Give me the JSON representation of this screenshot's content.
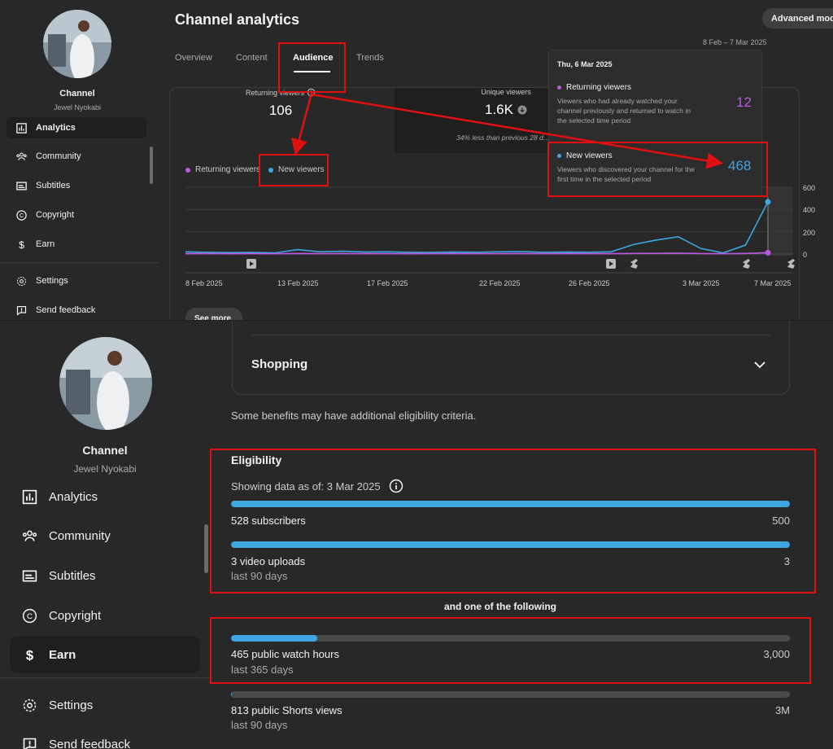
{
  "top": {
    "channel": {
      "name": "Channel",
      "owner": "Jewel Nyokabi"
    },
    "nav": [
      {
        "label": "Analytics",
        "icon": "analytics-icon"
      },
      {
        "label": "Community",
        "icon": "community-icon"
      },
      {
        "label": "Subtitles",
        "icon": "subtitles-icon"
      },
      {
        "label": "Copyright",
        "icon": "copyright-icon"
      },
      {
        "label": "Earn",
        "icon": "dollar-icon"
      },
      {
        "label": "Settings",
        "icon": "gear-icon"
      },
      {
        "label": "Send feedback",
        "icon": "feedback-icon"
      }
    ],
    "title": "Channel analytics",
    "advanced_mode": "Advanced mode",
    "date_range": "8 Feb – 7 Mar 2025",
    "tabs": [
      "Overview",
      "Content",
      "Audience",
      "Trends"
    ],
    "active_tab": "Audience",
    "metrics": {
      "returning": {
        "label": "Returning viewers",
        "value": "106"
      },
      "unique": {
        "label": "Unique viewers",
        "value": "1.6K",
        "note": "34% less than previous 28 d..."
      }
    },
    "see_more": "See more",
    "tooltip": {
      "date": "Thu, 6 Mar 2025",
      "returning": {
        "title": "Returning viewers",
        "desc": "Viewers who had already watched your channel previously and returned to watch in the selected time period",
        "value": "12"
      },
      "new": {
        "title": "New viewers",
        "desc": "Viewers who discovered your channel for the first time in the selected period",
        "value": "468"
      }
    }
  },
  "chart_data": {
    "type": "line",
    "legend": [
      "Returning viewers",
      "New viewers"
    ],
    "x": [
      "8 Feb",
      "9 Feb",
      "10 Feb",
      "11 Feb",
      "12 Feb",
      "13 Feb",
      "14 Feb",
      "15 Feb",
      "16 Feb",
      "17 Feb",
      "18 Feb",
      "19 Feb",
      "20 Feb",
      "21 Feb",
      "22 Feb",
      "23 Feb",
      "24 Feb",
      "25 Feb",
      "26 Feb",
      "27 Feb",
      "28 Feb",
      "1 Mar",
      "2 Mar",
      "3 Mar",
      "4 Mar",
      "5 Mar",
      "6 Mar"
    ],
    "x_tick_labels": [
      "8 Feb 2025",
      "13 Feb 2025",
      "17 Feb 2025",
      "22 Feb 2025",
      "26 Feb 2025",
      "3 Mar 2025",
      "7 Mar 2025"
    ],
    "y_ticks": [
      0,
      200,
      400,
      600
    ],
    "ylim": [
      0,
      600
    ],
    "series": [
      {
        "name": "New viewers",
        "color": "#3ea6e0",
        "values": [
          20,
          15,
          12,
          14,
          10,
          40,
          20,
          25,
          18,
          20,
          15,
          14,
          18,
          16,
          20,
          22,
          15,
          18,
          16,
          20,
          85,
          125,
          155,
          50,
          10,
          80,
          468
        ]
      },
      {
        "name": "Returning viewers",
        "color": "#b95ae0",
        "values": [
          3,
          4,
          2,
          3,
          2,
          5,
          3,
          4,
          3,
          3,
          2,
          3,
          4,
          3,
          3,
          4,
          3,
          4,
          3,
          3,
          5,
          6,
          8,
          4,
          2,
          5,
          12
        ]
      }
    ]
  },
  "bottom": {
    "channel": {
      "name": "Channel",
      "owner": "Jewel Nyokabi"
    },
    "nav": [
      {
        "label": "Analytics",
        "icon": "analytics-icon"
      },
      {
        "label": "Community",
        "icon": "community-icon"
      },
      {
        "label": "Subtitles",
        "icon": "subtitles-icon"
      },
      {
        "label": "Copyright",
        "icon": "copyright-icon"
      },
      {
        "label": "Earn",
        "icon": "dollar-icon"
      },
      {
        "label": "Settings",
        "icon": "gear-icon"
      },
      {
        "label": "Send feedback",
        "icon": "feedback-icon"
      }
    ],
    "shopping": "Shopping",
    "benefits_note": "Some benefits may have additional eligibility criteria.",
    "eligibility_title": "Eligibility",
    "as_of": "Showing data as of: 3 Mar 2025",
    "and_one": "and one of the following",
    "requirements": [
      {
        "label": "528 subscribers",
        "target": "500",
        "sub": "",
        "progress": 1.0
      },
      {
        "label": "3 video uploads",
        "target": "3",
        "sub": "last 90 days",
        "progress": 1.0
      },
      {
        "label": "465 public watch hours",
        "target": "3,000",
        "sub": "last 365 days",
        "progress": 0.155
      },
      {
        "label": "813 public Shorts views",
        "target": "3M",
        "sub": "last 90 days",
        "progress": 0.0003
      }
    ]
  }
}
